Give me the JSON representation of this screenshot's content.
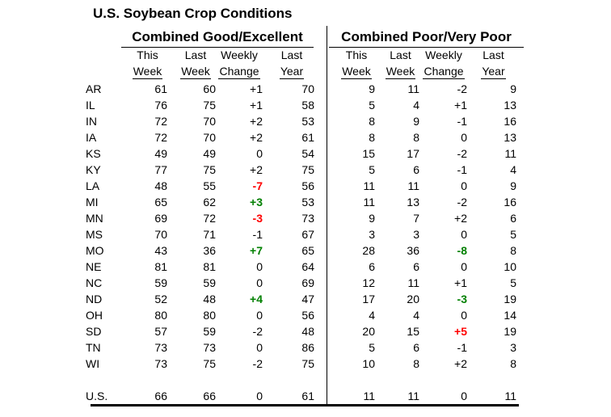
{
  "title": "U.S. Soybean Crop Conditions",
  "colors": {
    "gain": "#008000",
    "loss": "#ff0000",
    "text": "#000000",
    "background": "#ffffff"
  },
  "sections": [
    {
      "id": "good_excellent",
      "header": "Combined Good/Excellent",
      "columns": [
        {
          "line1": "This",
          "line2": "Week"
        },
        {
          "line1": "Last",
          "line2": "Week"
        },
        {
          "line1": "Weekly",
          "line2": "Change"
        },
        {
          "line1": "Last",
          "line2": "Year"
        }
      ]
    },
    {
      "id": "poor_very_poor",
      "header": "Combined Poor/Very Poor",
      "columns": [
        {
          "line1": "This",
          "line2": "Week"
        },
        {
          "line1": "Last",
          "line2": "Week"
        },
        {
          "line1": "Weekly",
          "line2": "Change"
        },
        {
          "line1": "Last",
          "line2": "Year"
        }
      ]
    }
  ],
  "rows": [
    {
      "state": "AR",
      "good_excellent": {
        "this_week": 61,
        "last_week": 60,
        "weekly_change": "+1",
        "change_color": "black",
        "last_year": 70
      },
      "poor_very_poor": {
        "this_week": 9,
        "last_week": 11,
        "weekly_change": "-2",
        "change_color": "black",
        "last_year": 9
      }
    },
    {
      "state": "IL",
      "good_excellent": {
        "this_week": 76,
        "last_week": 75,
        "weekly_change": "+1",
        "change_color": "black",
        "last_year": 58
      },
      "poor_very_poor": {
        "this_week": 5,
        "last_week": 4,
        "weekly_change": "+1",
        "change_color": "black",
        "last_year": 13
      }
    },
    {
      "state": "IN",
      "good_excellent": {
        "this_week": 72,
        "last_week": 70,
        "weekly_change": "+2",
        "change_color": "black",
        "last_year": 53
      },
      "poor_very_poor": {
        "this_week": 8,
        "last_week": 9,
        "weekly_change": "-1",
        "change_color": "black",
        "last_year": 16
      }
    },
    {
      "state": "IA",
      "good_excellent": {
        "this_week": 72,
        "last_week": 70,
        "weekly_change": "+2",
        "change_color": "black",
        "last_year": 61
      },
      "poor_very_poor": {
        "this_week": 8,
        "last_week": 8,
        "weekly_change": "0",
        "change_color": "black",
        "last_year": 13
      }
    },
    {
      "state": "KS",
      "good_excellent": {
        "this_week": 49,
        "last_week": 49,
        "weekly_change": "0",
        "change_color": "black",
        "last_year": 54
      },
      "poor_very_poor": {
        "this_week": 15,
        "last_week": 17,
        "weekly_change": "-2",
        "change_color": "black",
        "last_year": 11
      }
    },
    {
      "state": "KY",
      "good_excellent": {
        "this_week": 77,
        "last_week": 75,
        "weekly_change": "+2",
        "change_color": "black",
        "last_year": 75
      },
      "poor_very_poor": {
        "this_week": 5,
        "last_week": 6,
        "weekly_change": "-1",
        "change_color": "black",
        "last_year": 4
      }
    },
    {
      "state": "LA",
      "good_excellent": {
        "this_week": 48,
        "last_week": 55,
        "weekly_change": "-7",
        "change_color": "red",
        "last_year": 56
      },
      "poor_very_poor": {
        "this_week": 11,
        "last_week": 11,
        "weekly_change": "0",
        "change_color": "black",
        "last_year": 9
      }
    },
    {
      "state": "MI",
      "good_excellent": {
        "this_week": 65,
        "last_week": 62,
        "weekly_change": "+3",
        "change_color": "green",
        "last_year": 53
      },
      "poor_very_poor": {
        "this_week": 11,
        "last_week": 13,
        "weekly_change": "-2",
        "change_color": "black",
        "last_year": 16
      }
    },
    {
      "state": "MN",
      "good_excellent": {
        "this_week": 69,
        "last_week": 72,
        "weekly_change": "-3",
        "change_color": "red",
        "last_year": 73
      },
      "poor_very_poor": {
        "this_week": 9,
        "last_week": 7,
        "weekly_change": "+2",
        "change_color": "black",
        "last_year": 6
      }
    },
    {
      "state": "MS",
      "good_excellent": {
        "this_week": 70,
        "last_week": 71,
        "weekly_change": "-1",
        "change_color": "black",
        "last_year": 67
      },
      "poor_very_poor": {
        "this_week": 3,
        "last_week": 3,
        "weekly_change": "0",
        "change_color": "black",
        "last_year": 5
      }
    },
    {
      "state": "MO",
      "good_excellent": {
        "this_week": 43,
        "last_week": 36,
        "weekly_change": "+7",
        "change_color": "green",
        "last_year": 65
      },
      "poor_very_poor": {
        "this_week": 28,
        "last_week": 36,
        "weekly_change": "-8",
        "change_color": "green",
        "last_year": 8
      }
    },
    {
      "state": "NE",
      "good_excellent": {
        "this_week": 81,
        "last_week": 81,
        "weekly_change": "0",
        "change_color": "black",
        "last_year": 64
      },
      "poor_very_poor": {
        "this_week": 6,
        "last_week": 6,
        "weekly_change": "0",
        "change_color": "black",
        "last_year": 10
      }
    },
    {
      "state": "NC",
      "good_excellent": {
        "this_week": 59,
        "last_week": 59,
        "weekly_change": "0",
        "change_color": "black",
        "last_year": 69
      },
      "poor_very_poor": {
        "this_week": 12,
        "last_week": 11,
        "weekly_change": "+1",
        "change_color": "black",
        "last_year": 5
      }
    },
    {
      "state": "ND",
      "good_excellent": {
        "this_week": 52,
        "last_week": 48,
        "weekly_change": "+4",
        "change_color": "green",
        "last_year": 47
      },
      "poor_very_poor": {
        "this_week": 17,
        "last_week": 20,
        "weekly_change": "-3",
        "change_color": "green",
        "last_year": 19
      }
    },
    {
      "state": "OH",
      "good_excellent": {
        "this_week": 80,
        "last_week": 80,
        "weekly_change": "0",
        "change_color": "black",
        "last_year": 56
      },
      "poor_very_poor": {
        "this_week": 4,
        "last_week": 4,
        "weekly_change": "0",
        "change_color": "black",
        "last_year": 14
      }
    },
    {
      "state": "SD",
      "good_excellent": {
        "this_week": 57,
        "last_week": 59,
        "weekly_change": "-2",
        "change_color": "black",
        "last_year": 48
      },
      "poor_very_poor": {
        "this_week": 20,
        "last_week": 15,
        "weekly_change": "+5",
        "change_color": "red",
        "last_year": 19
      }
    },
    {
      "state": "TN",
      "good_excellent": {
        "this_week": 73,
        "last_week": 73,
        "weekly_change": "0",
        "change_color": "black",
        "last_year": 86
      },
      "poor_very_poor": {
        "this_week": 5,
        "last_week": 6,
        "weekly_change": "-1",
        "change_color": "black",
        "last_year": 3
      }
    },
    {
      "state": "WI",
      "good_excellent": {
        "this_week": 73,
        "last_week": 75,
        "weekly_change": "-2",
        "change_color": "black",
        "last_year": 75
      },
      "poor_very_poor": {
        "this_week": 10,
        "last_week": 8,
        "weekly_change": "+2",
        "change_color": "black",
        "last_year": 8
      }
    }
  ],
  "total_row": {
    "state": "U.S.",
    "good_excellent": {
      "this_week": 66,
      "last_week": 66,
      "weekly_change": "0",
      "change_color": "black",
      "last_year": 61
    },
    "poor_very_poor": {
      "this_week": 11,
      "last_week": 11,
      "weekly_change": "0",
      "change_color": "black",
      "last_year": 11
    }
  }
}
